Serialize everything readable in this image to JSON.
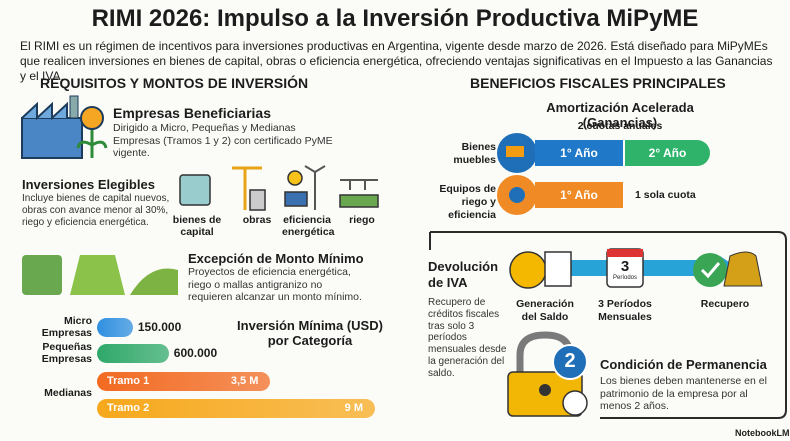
{
  "header": {
    "title": "RIMI 2026: Impulso a la Inversión Productiva MiPyME",
    "intro": "El RIMI es un régimen de incentivos para inversiones productivas en Argentina, vigente desde marzo de 2026. Está diseñado para MiPyMEs que realicen inversiones en bienes de capital, obras o eficiencia energética, ofreciendo ventajas significativas en el Impuesto a las Ganancias y el IVA."
  },
  "left": {
    "heading": "REQUISITOS Y MONTOS DE INVERSIÓN",
    "beneficiaries": {
      "title": "Empresas Beneficiarias",
      "text": "Dirigido a Micro, Pequeñas y Medianas Empresas (Tramos 1 y 2) con certificado PyME vigente."
    },
    "eligible": {
      "title": "Inversiones Elegibles",
      "text": "Incluye bienes de capital nuevos, obras con avance menor al 30%, riego y eficiencia energética.",
      "items": [
        "bienes de capital",
        "obras",
        "eficiencia energética",
        "riego"
      ]
    },
    "exception": {
      "title": "Excepción de Monto Mínimo",
      "text": "Proyectos de eficiencia energética, riego o mallas antigranizo no requieren alcanzar un monto mínimo."
    },
    "investment_chart": {
      "type": "bar",
      "title": "Inversión Mínima (USD) por Categoría",
      "group_label": "Medianas",
      "bars": [
        {
          "category": "Micro Empresas",
          "value": 150000,
          "value_label": "150.000",
          "color": "#2f8fe0"
        },
        {
          "category": "Pequeñas Empresas",
          "value": 600000,
          "value_label": "600.000",
          "color": "#2fa86a"
        },
        {
          "name": "Tramo 1",
          "value": 3500000,
          "value_label": "3,5 M",
          "color": "#f26a21"
        },
        {
          "name": "Tramo 2",
          "value": 9000000,
          "value_label": "9 M",
          "color": "#f7a81b"
        }
      ]
    }
  },
  "right": {
    "heading": "BENEFICIOS FISCALES PRINCIPALES",
    "amortization": {
      "title": "Amortización Acelerada (Ganancias)",
      "subtitle": "2 cuotas anuales",
      "rows": [
        {
          "label": "Bienes muebles",
          "steps": [
            "1° Año",
            "2° Año"
          ]
        },
        {
          "label": "Equipos de riego y eficiencia",
          "steps": [
            "1° Año"
          ],
          "note": "1 sola cuota"
        }
      ]
    },
    "iva": {
      "title": "Devolución de IVA",
      "text": "Recupero de créditos fiscales tras solo 3 períodos mensuales desde la generación del saldo.",
      "calendar": {
        "number": "3",
        "label": "Períodos"
      },
      "steps": [
        "Generación del Saldo",
        "3 Períodos Mensuales",
        "Recupero"
      ]
    },
    "permanence": {
      "badge": "2",
      "title": "Condición de Permanencia",
      "text": "Los bienes deben mantenerse en el patrimonio de la empresa por al menos 2 años."
    }
  },
  "footer": {
    "brand": "NotebookLM"
  }
}
